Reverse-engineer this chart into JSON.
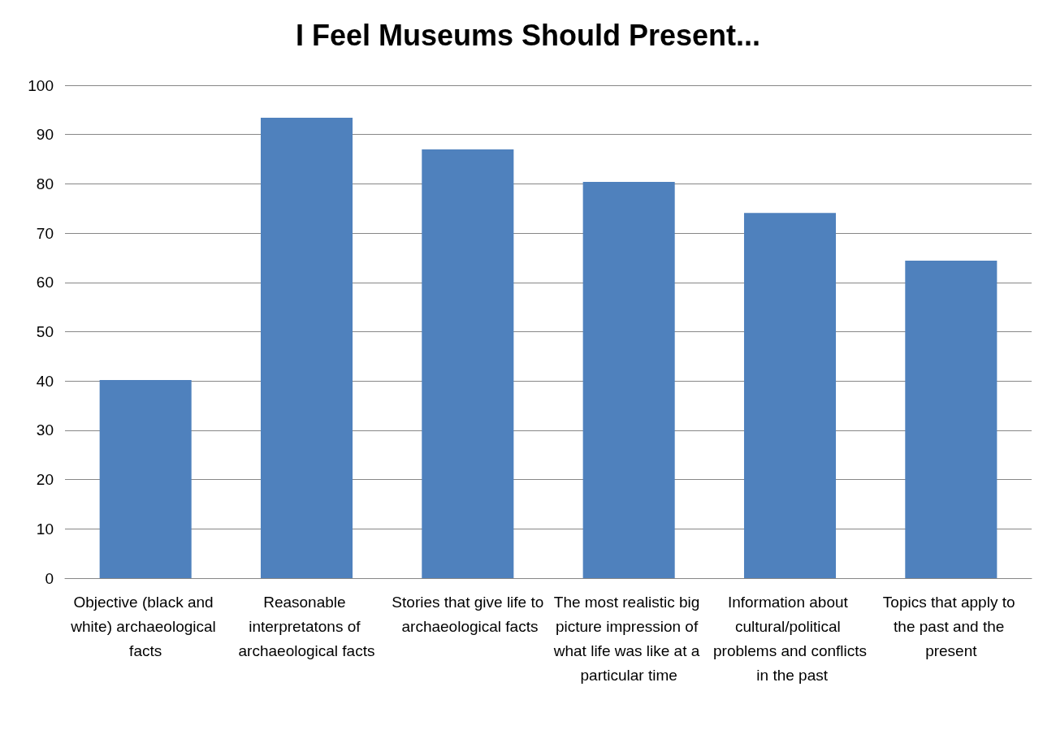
{
  "chart_data": {
    "type": "bar",
    "title": "I Feel Museums Should Present...",
    "categories": [
      "Objective (black and white) archaeological facts",
      "Reasonable interpretatons of archaeological facts",
      "Stories that give life to archaeological facts",
      "The most realistic big picture impression of what life was like at a particular time",
      "Information about cultural/political problems and conflicts in the past",
      "Topics that apply to the past and the present"
    ],
    "values": [
      40.2,
      93.4,
      87.0,
      80.4,
      74.1,
      64.4
    ],
    "color": "#4f81bd",
    "ylim": [
      0,
      100
    ],
    "yticks": [
      0,
      10,
      20,
      30,
      40,
      50,
      60,
      70,
      80,
      90,
      100
    ],
    "grid": "y"
  }
}
